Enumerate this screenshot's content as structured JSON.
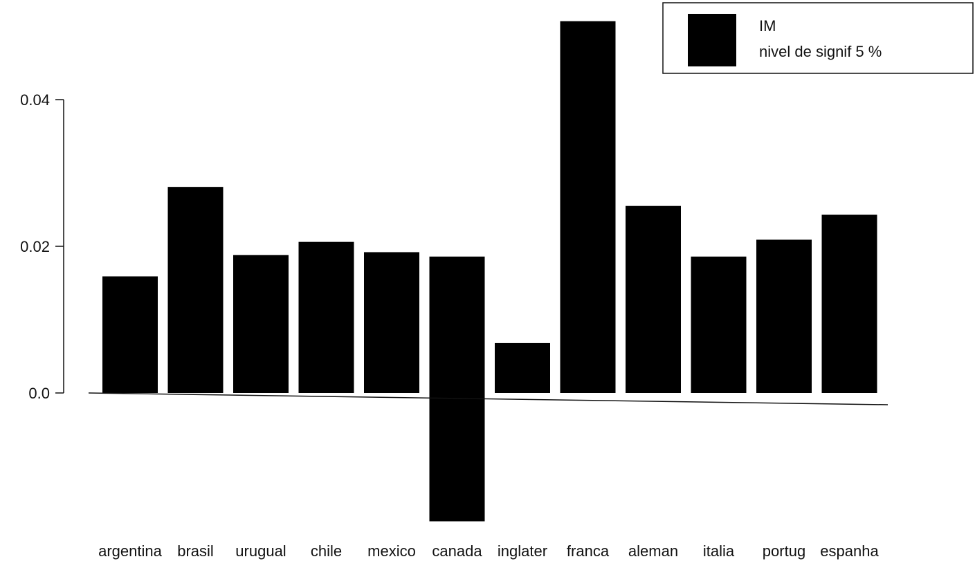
{
  "chart_data": {
    "type": "bar",
    "categories": [
      "argentina",
      "brasil",
      "urugual",
      "chile",
      "mexico",
      "canada",
      "inglater",
      "franca",
      "aleman",
      "italia",
      "portug",
      "espanha"
    ],
    "series": [
      {
        "name": "IM",
        "values": [
          0.0159,
          0.0281,
          0.0188,
          0.0206,
          0.0192,
          0.0186,
          0.0068,
          0.0507,
          0.0255,
          0.0186,
          0.0209,
          0.0243
        ]
      },
      {
        "name": "nivel de signif 5 %",
        "values": [
          null,
          null,
          null,
          null,
          null,
          -0.0175,
          null,
          null,
          null,
          null,
          null,
          null
        ]
      }
    ],
    "yticks": [
      0.0,
      0.02,
      0.04
    ],
    "ytick_labels": [
      "0.0",
      "0.02",
      "0.04"
    ],
    "ylim": [
      -0.018,
      0.052
    ],
    "legend_position": "top-right",
    "grid": false,
    "bar_color": "#000000"
  }
}
